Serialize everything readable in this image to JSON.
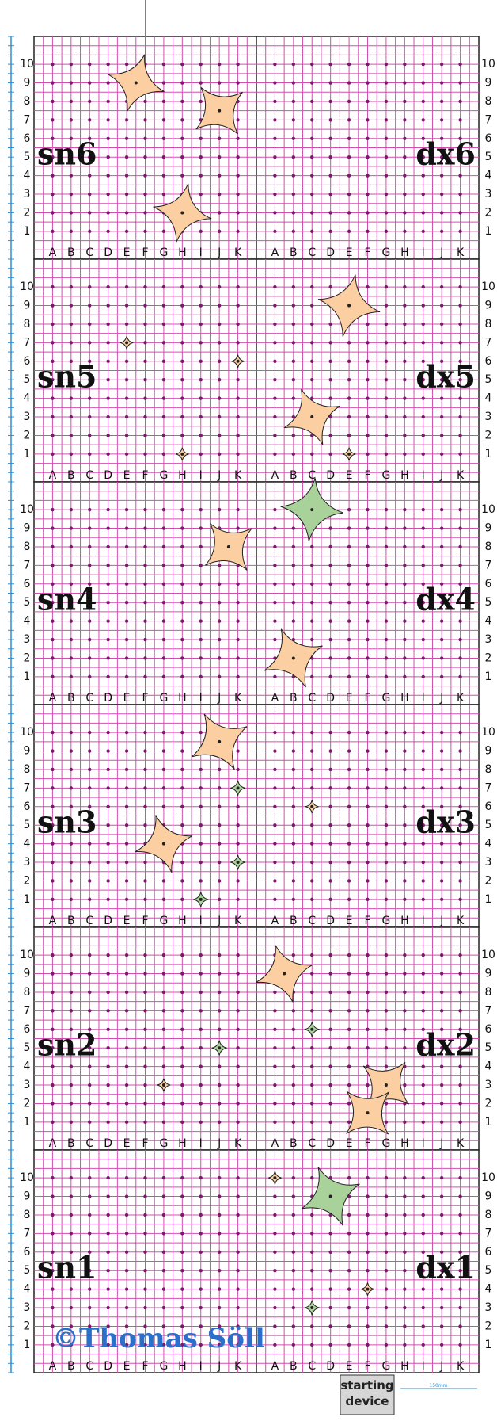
{
  "columns": [
    "A",
    "B",
    "C",
    "D",
    "E",
    "F",
    "G",
    "H",
    "I",
    "J",
    "K"
  ],
  "rows": [
    1,
    2,
    3,
    4,
    5,
    6,
    7,
    8,
    9,
    10
  ],
  "panels": [
    {
      "left": "sn6",
      "right": "dx6"
    },
    {
      "left": "sn5",
      "right": "dx5"
    },
    {
      "left": "sn4",
      "right": "dx4"
    },
    {
      "left": "sn3",
      "right": "dx3"
    },
    {
      "left": "sn2",
      "right": "dx2"
    },
    {
      "left": "sn1",
      "right": "dx1"
    }
  ],
  "copyright": "©Thomas Söll",
  "start_box": [
    "starting",
    "device"
  ],
  "scale_label": "150mm"
}
